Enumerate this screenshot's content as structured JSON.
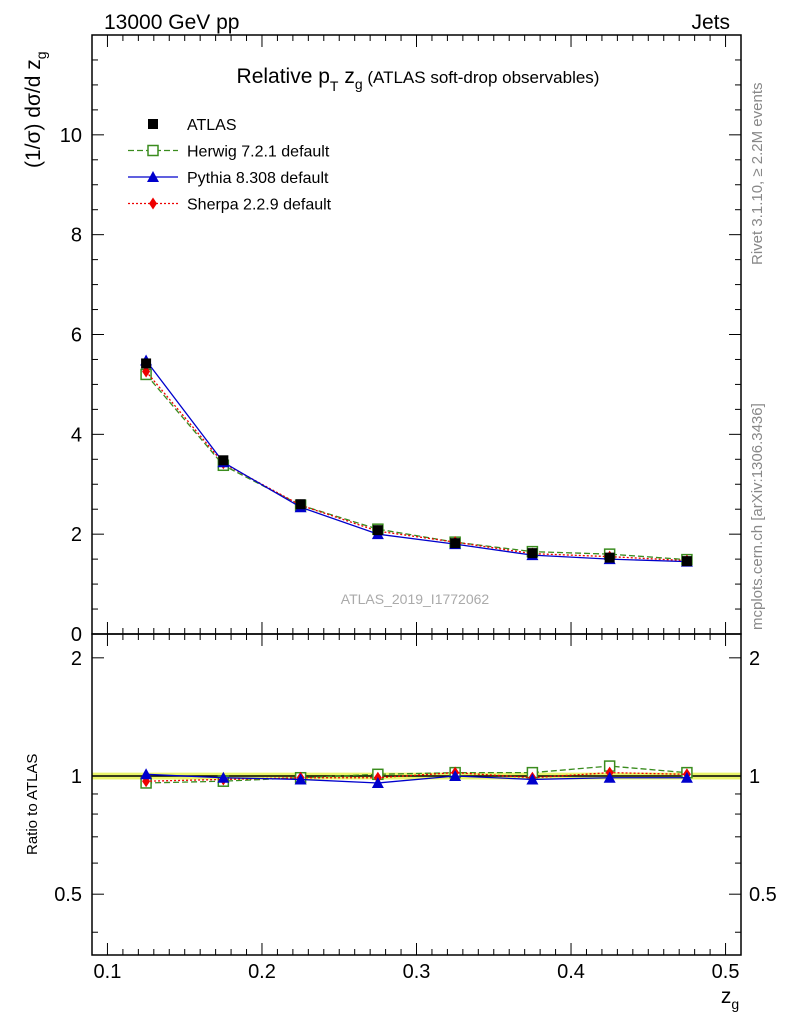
{
  "header": {
    "left": "13000 GeV pp",
    "right": "Jets"
  },
  "side_text": {
    "rivet": "Rivet 3.1.10, ≥ 2.2M events",
    "mcplots": "mcplots.cern.ch [arXiv:1306.3436]"
  },
  "chart_data": [
    {
      "type": "line",
      "title": {
        "prefix": "Relative p",
        "sub1": "T",
        "mid": " z",
        "sub2": "g",
        "suffix": " (ATLAS soft-drop observables)"
      },
      "ylabel": {
        "main": "(1/σ) dσ/d z",
        "sub": "g"
      },
      "watermark": "ATLAS_2019_I1772062",
      "xlim": [
        0.09,
        0.51
      ],
      "ylim": [
        0,
        12
      ],
      "yticks": [
        0,
        2,
        4,
        6,
        8,
        10
      ],
      "ytick_labels": [
        "0",
        "2",
        "4",
        "6",
        "8",
        "10"
      ],
      "x": [
        0.125,
        0.175,
        0.225,
        0.275,
        0.325,
        0.375,
        0.425,
        0.475
      ],
      "series": [
        {
          "name": "ATLAS",
          "color": "#000000",
          "marker": "square-filled",
          "line": "none",
          "values": [
            5.42,
            3.48,
            2.6,
            2.08,
            1.82,
            1.62,
            1.53,
            1.46
          ]
        },
        {
          "name": "Herwig 7.2.1 default",
          "color": "#3a8c1e",
          "marker": "square-open",
          "line": "dashed",
          "values": [
            5.2,
            3.38,
            2.58,
            2.1,
            1.84,
            1.65,
            1.6,
            1.49
          ]
        },
        {
          "name": "Pythia 8.308 default",
          "color": "#0000cc",
          "marker": "triangle-filled",
          "line": "solid",
          "values": [
            5.48,
            3.44,
            2.54,
            2.0,
            1.8,
            1.58,
            1.5,
            1.45
          ]
        },
        {
          "name": "Sherpa 2.2.9 default",
          "color": "#ee0000",
          "marker": "diamond-filled",
          "line": "dotted",
          "values": [
            5.26,
            3.42,
            2.58,
            2.06,
            1.84,
            1.61,
            1.55,
            1.47
          ]
        }
      ]
    },
    {
      "type": "line",
      "ylabel": "Ratio to ATLAS",
      "xlabel": {
        "main": "z",
        "sub": "g"
      },
      "xlim": [
        0.09,
        0.51
      ],
      "ylim": [
        0.35,
        2.3
      ],
      "xticks": [
        0.1,
        0.2,
        0.3,
        0.4,
        0.5
      ],
      "xtick_labels": [
        "0.1",
        "0.2",
        "0.3",
        "0.4",
        "0.5"
      ],
      "yticks": [
        0.5,
        1,
        2
      ],
      "ytick_labels": [
        "0.5",
        "1",
        "2"
      ],
      "x": [
        0.125,
        0.175,
        0.225,
        0.275,
        0.325,
        0.375,
        0.425,
        0.475
      ],
      "band_color": "#e8f55a",
      "band": {
        "low": 0.98,
        "high": 1.02
      },
      "series": [
        {
          "name": "ATLAS",
          "color": "#000000",
          "values": [
            1,
            1,
            1,
            1,
            1,
            1,
            1,
            1
          ]
        },
        {
          "name": "Herwig 7.2.1 default",
          "color": "#3a8c1e",
          "marker": "square-open",
          "line": "dashed",
          "values": [
            0.96,
            0.97,
            0.99,
            1.01,
            1.02,
            1.02,
            1.06,
            1.02
          ]
        },
        {
          "name": "Pythia 8.308 default",
          "color": "#0000cc",
          "marker": "triangle-filled",
          "line": "solid",
          "values": [
            1.01,
            0.99,
            0.98,
            0.96,
            1.0,
            0.98,
            0.99,
            0.99
          ]
        },
        {
          "name": "Sherpa 2.2.9 default",
          "color": "#ee0000",
          "marker": "diamond-filled",
          "line": "dotted",
          "values": [
            0.97,
            0.98,
            0.99,
            0.99,
            1.02,
            0.99,
            1.02,
            1.01
          ]
        }
      ]
    }
  ]
}
